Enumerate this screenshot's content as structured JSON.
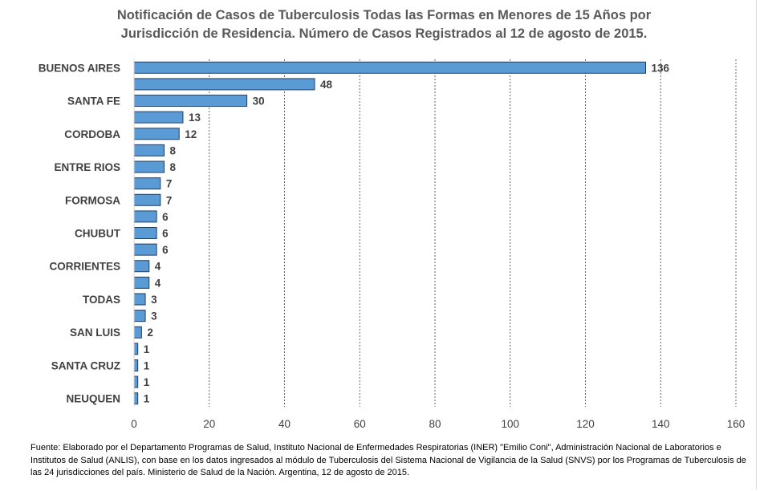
{
  "chart_data": {
    "type": "bar",
    "orientation": "horizontal",
    "title_lines": [
      "Notificación de Casos de Tuberculosis Todas las Formas en Menores de 15 Años por",
      "Jurisdicción de Residencia. Número de Casos Registrados al 12 de agosto de 2015."
    ],
    "categories": [
      "BUENOS AIRES",
      "",
      "SANTA FE",
      "",
      "CORDOBA",
      "",
      "ENTRE RIOS",
      "",
      "FORMOSA",
      "",
      "CHUBUT",
      "",
      "CORRIENTES",
      "",
      "TODAS",
      "",
      "SAN LUIS",
      "",
      "SANTA CRUZ",
      "",
      "NEUQUEN"
    ],
    "values": [
      136,
      48,
      30,
      13,
      12,
      8,
      8,
      7,
      7,
      6,
      6,
      6,
      4,
      4,
      3,
      3,
      2,
      1,
      1,
      1,
      1
    ],
    "xlim": [
      0,
      160
    ],
    "xticks": [
      "0",
      "20",
      "40",
      "60",
      "80",
      "100",
      "120",
      "140",
      "160"
    ],
    "xtick_values": [
      0,
      20,
      40,
      60,
      80,
      100,
      120,
      140,
      160
    ],
    "grid": "vertical dashed",
    "legend": "none",
    "bar_color": "#5b9bd5",
    "bar_edge_color": "#1f3f66",
    "source": "Fuente: Elaborado por el Departamento Programas de Salud, Instituto Nacional de Enfermedades Respiratorias (INER) \"Emilio Coni\", Administración Nacional de Laboratorios e Institutos de Salud (ANLIS), con base en los datos ingresados al módulo de Tuberculosis del Sistema Nacional de Vigilancia de la Salud (SNVS) por los Programas de Tuberculosis de las  24 jurisdicciones del país. Ministerio de Salud de la Nación. Argentina,  12 de agosto de 2015."
  }
}
